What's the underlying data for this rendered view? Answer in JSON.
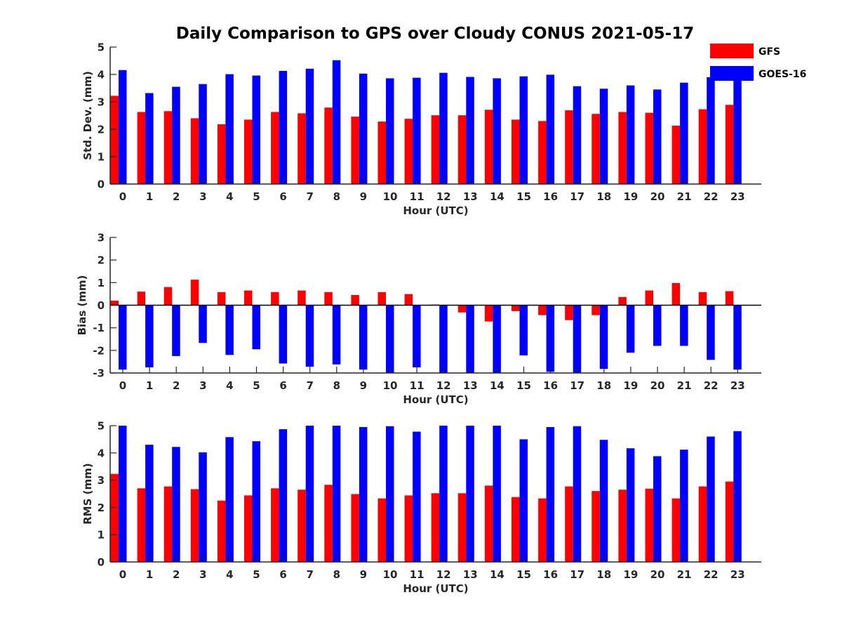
{
  "title": "Daily Comparison to GPS over Cloudy CONUS 2021-05-17",
  "legend": {
    "placement": "top-right",
    "items": [
      {
        "label": "GFS",
        "color": "#ff0000"
      },
      {
        "label": "GOES-16",
        "color": "#0000ff"
      }
    ]
  },
  "chart_data": [
    {
      "type": "bar",
      "xlabel": "Hour (UTC)",
      "ylabel": "Std. Dev. (mm)",
      "ylim": [
        0,
        5
      ],
      "yticks": [
        0,
        1,
        2,
        3,
        4,
        5
      ],
      "categories": [
        "0",
        "1",
        "2",
        "3",
        "4",
        "5",
        "6",
        "7",
        "8",
        "9",
        "10",
        "11",
        "12",
        "13",
        "14",
        "15",
        "16",
        "17",
        "18",
        "19",
        "20",
        "21",
        "22",
        "23"
      ],
      "series": [
        {
          "name": "GFS",
          "color": "#ff0000",
          "values": [
            3.22,
            2.63,
            2.66,
            2.4,
            2.18,
            2.35,
            2.63,
            2.58,
            2.79,
            2.46,
            2.28,
            2.38,
            2.51,
            2.51,
            2.71,
            2.35,
            2.3,
            2.69,
            2.56,
            2.63,
            2.6,
            2.13,
            2.73,
            2.89
          ]
        },
        {
          "name": "GOES-16",
          "color": "#0000ff",
          "values": [
            4.16,
            3.32,
            3.55,
            3.65,
            4.01,
            3.96,
            4.13,
            4.21,
            4.52,
            4.03,
            3.86,
            3.88,
            4.06,
            3.91,
            3.86,
            3.93,
            3.99,
            3.57,
            3.48,
            3.6,
            3.45,
            3.7,
            3.9,
            4.0
          ]
        }
      ]
    },
    {
      "type": "bar",
      "xlabel": "Hour (UTC)",
      "ylabel": "Bias (mm)",
      "ylim": [
        -3,
        3
      ],
      "yticks": [
        -3,
        -2,
        -1,
        0,
        1,
        2,
        3
      ],
      "categories": [
        "0",
        "1",
        "2",
        "3",
        "4",
        "5",
        "6",
        "7",
        "8",
        "9",
        "10",
        "11",
        "12",
        "13",
        "14",
        "15",
        "16",
        "17",
        "18",
        "19",
        "20",
        "21",
        "22",
        "23"
      ],
      "series": [
        {
          "name": "GFS",
          "color": "#ff0000",
          "values": [
            0.2,
            0.6,
            0.8,
            1.13,
            0.58,
            0.65,
            0.58,
            0.65,
            0.58,
            0.45,
            0.58,
            0.49,
            0.03,
            -0.32,
            -0.72,
            -0.26,
            -0.44,
            -0.66,
            -0.44,
            0.36,
            0.65,
            0.98,
            0.58,
            0.62
          ]
        },
        {
          "name": "GOES-16",
          "color": "#0000ff",
          "values": [
            -2.85,
            -2.75,
            -2.25,
            -1.67,
            -2.2,
            -1.95,
            -2.58,
            -2.72,
            -2.62,
            -2.85,
            -3.0,
            -2.75,
            -3.0,
            -3.0,
            -3.0,
            -2.22,
            -2.95,
            -3.0,
            -2.82,
            -2.1,
            -1.8,
            -1.8,
            -2.42,
            -2.85
          ]
        }
      ]
    },
    {
      "type": "bar",
      "xlabel": "Hour (UTC)",
      "ylabel": "RMS (mm)",
      "ylim": [
        0,
        5
      ],
      "yticks": [
        0,
        1,
        2,
        3,
        4,
        5
      ],
      "categories": [
        "0",
        "1",
        "2",
        "3",
        "4",
        "5",
        "6",
        "7",
        "8",
        "9",
        "10",
        "11",
        "12",
        "13",
        "14",
        "15",
        "16",
        "17",
        "18",
        "19",
        "20",
        "21",
        "22",
        "23"
      ],
      "series": [
        {
          "name": "GFS",
          "color": "#ff0000",
          "values": [
            3.23,
            2.7,
            2.77,
            2.67,
            2.25,
            2.44,
            2.7,
            2.65,
            2.83,
            2.49,
            2.33,
            2.44,
            2.52,
            2.52,
            2.8,
            2.38,
            2.33,
            2.77,
            2.6,
            2.65,
            2.69,
            2.33,
            2.77,
            2.95
          ]
        },
        {
          "name": "GOES-16",
          "color": "#0000ff",
          "values": [
            5.0,
            4.3,
            4.22,
            4.02,
            4.58,
            4.43,
            4.87,
            5.0,
            5.0,
            4.95,
            4.98,
            4.78,
            5.0,
            5.0,
            5.0,
            4.5,
            4.95,
            4.98,
            4.48,
            4.17,
            3.88,
            4.12,
            4.6,
            4.8
          ]
        }
      ]
    }
  ]
}
